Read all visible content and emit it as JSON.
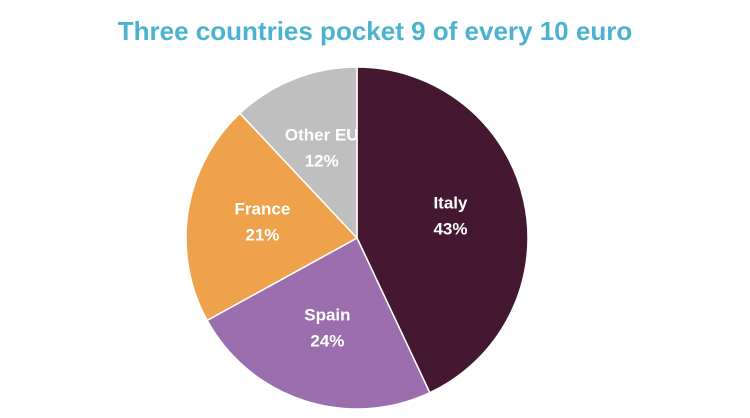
{
  "chart_data": {
    "type": "pie",
    "title": "Three countries pocket 9 of every 10 euro",
    "categories": [
      "Italy",
      "Spain",
      "France",
      "Other EU"
    ],
    "values": [
      43,
      24,
      21,
      12
    ],
    "value_labels": [
      "43%",
      "24%",
      "21%",
      "12%"
    ],
    "colors": [
      "#431830",
      "#9b6fad",
      "#eda24b",
      "#bfbfbf"
    ]
  }
}
